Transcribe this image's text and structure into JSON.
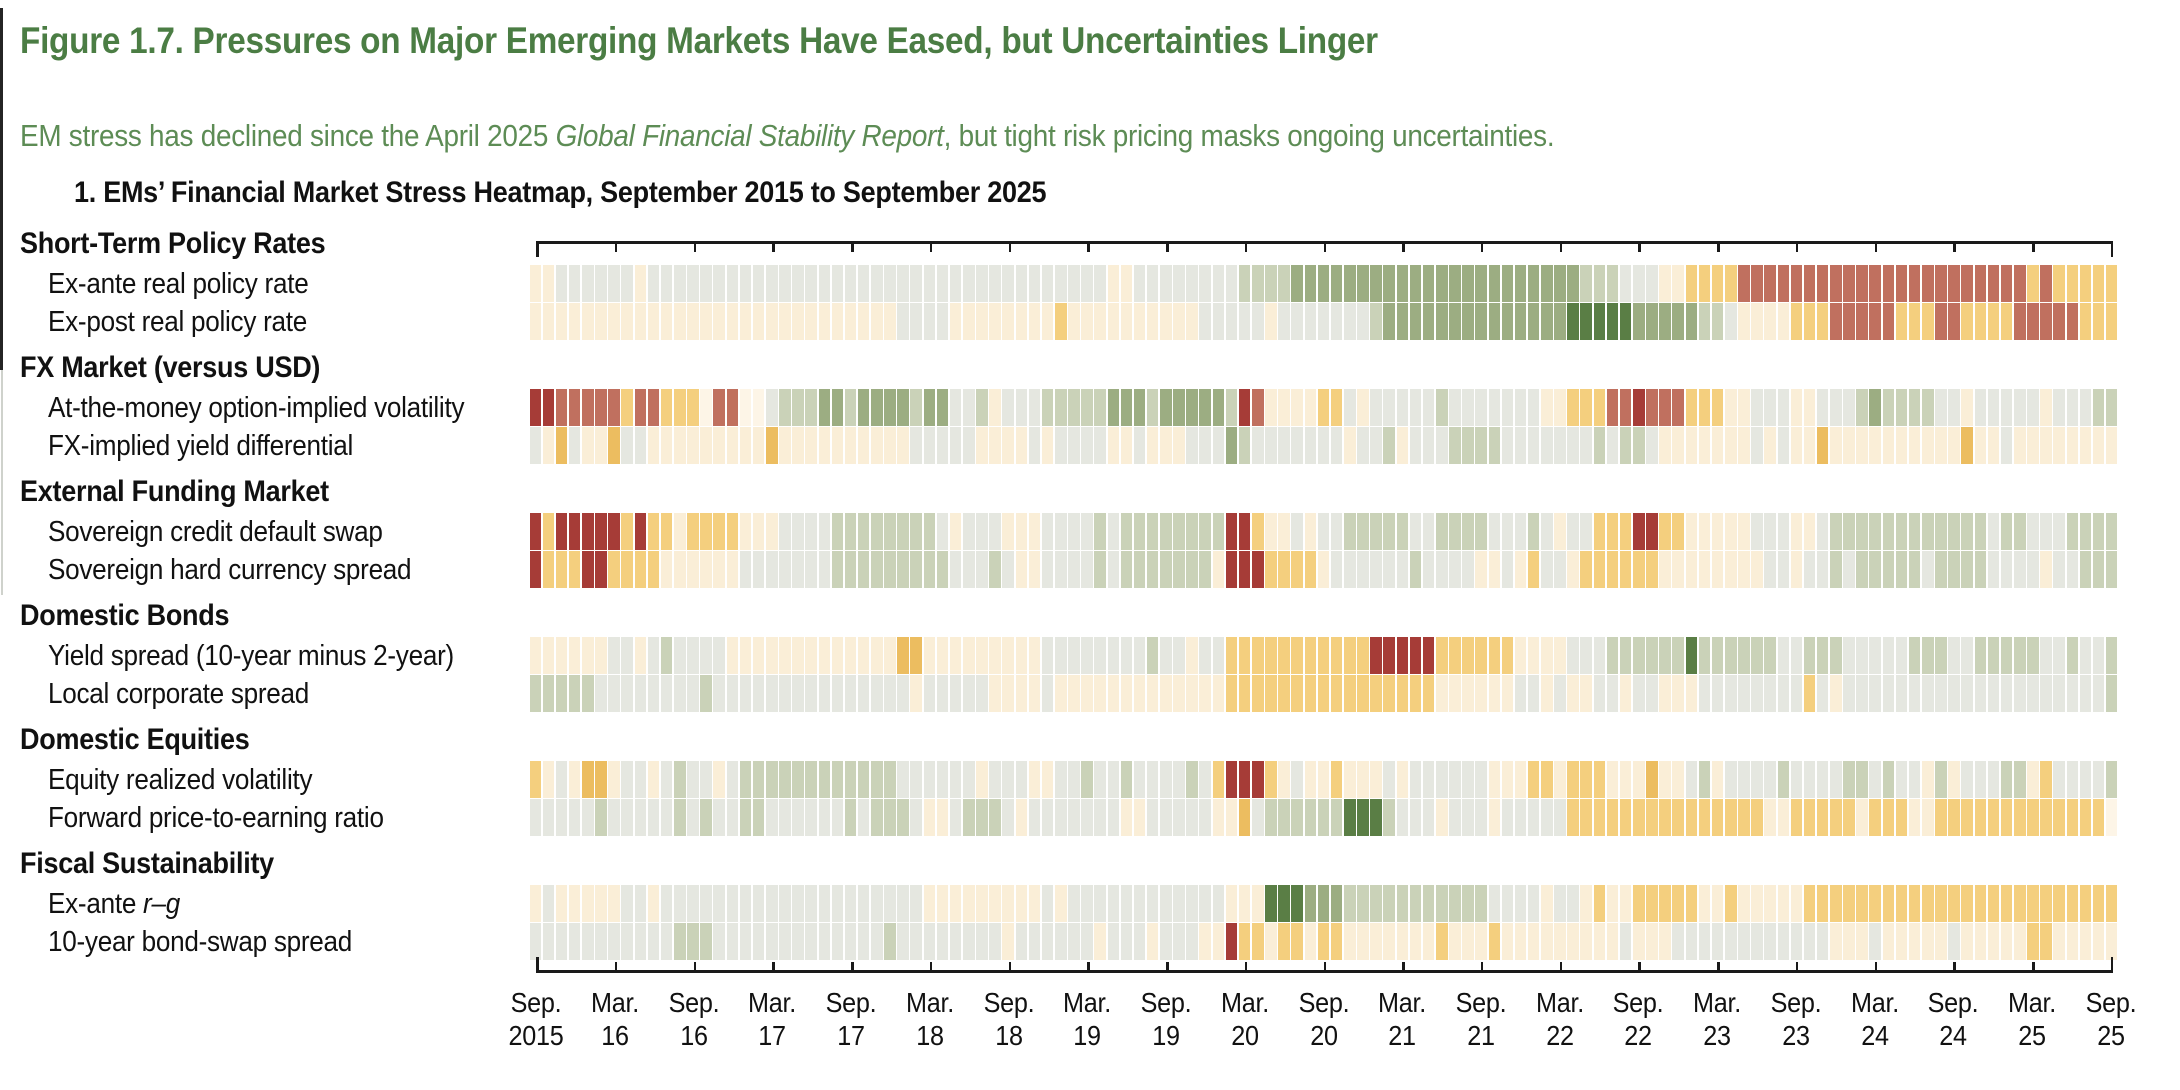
{
  "figure": {
    "title": "Figure 1.7. Pressures on Major Emerging Markets Have Eased, but Uncertainties Linger",
    "subtitle_prefix": "EM stress has declined since the April 2025 ",
    "subtitle_italic": "Global Financial Stability Report",
    "subtitle_suffix": ", but tight risk pricing masks ongoing uncertainties.",
    "title_color": "#4b7d44",
    "subtitle_color": "#5d8c55"
  },
  "chart_data": {
    "type": "heatmap",
    "title": "1. EMs’ Financial Market Stress Heatmap, September 2015 to September 2025",
    "time_axis": {
      "unit": "month",
      "n_cols": 121,
      "start": "Sep. 2015",
      "end": "Sep. 25",
      "tick_every_months": 6,
      "tick_labels": [
        [
          "Sep.",
          "2015"
        ],
        [
          "Mar.",
          "16"
        ],
        [
          "Sep.",
          "16"
        ],
        [
          "Mar.",
          "17"
        ],
        [
          "Sep.",
          "17"
        ],
        [
          "Mar.",
          "18"
        ],
        [
          "Sep.",
          "18"
        ],
        [
          "Mar.",
          "19"
        ],
        [
          "Sep.",
          "19"
        ],
        [
          "Mar.",
          "20"
        ],
        [
          "Sep.",
          "20"
        ],
        [
          "Mar.",
          "21"
        ],
        [
          "Sep.",
          "21"
        ],
        [
          "Mar.",
          "22"
        ],
        [
          "Sep.",
          "22"
        ],
        [
          "Mar.",
          "23"
        ],
        [
          "Sep.",
          "23"
        ],
        [
          "Mar.",
          "24"
        ],
        [
          "Sep.",
          "24"
        ],
        [
          "Mar.",
          "25"
        ],
        [
          "Sep.",
          "25"
        ]
      ]
    },
    "palette": {
      "G": "#5a7e45",
      "g": "#9cad82",
      "s": "#cad2b8",
      "n": "#e5e7e0",
      "w": "#fdf5e7",
      "c": "#faeed7",
      "o": "#f4cf7e",
      "O": "#ecbd60",
      "r": "#c0705f",
      "R": "#a63c37"
    },
    "groups": [
      {
        "label": "Short-Term Policy Rates",
        "rows": [
          {
            "label": "Ex-ante real policy rate",
            "cells_rle": "c2 n6 c1 n35 c2 n8 s4 g22 s3 n3 c2 o4 r22 o1 r1 o5"
          },
          {
            "label": "Ex-post real policy rate",
            "cells_rle": "c28 n4 c8 o1 c10 n5 c1 n7 s1 g14 G5 g5 s2 n1 c4 o3 r5 o3 r2 o4 r5 o3"
          }
        ]
      },
      {
        "label": "FX Market (versus USD)",
        "rows": [
          {
            "label": "At-the-money option-implied volatility",
            "cells_rle": "R2 r5 o1 r2 o3 w1 r2 w2 n1 s3 g2 s1 g4 s1 g2 n2 s1 c1 n3 s5 g3 s1 g5 s1 R1 r1 c4 o2 n1 c1 n5 s1 n7 c2 o3 r2 R1 r3 o3 c2 n3 c2 n3 s1 g1 s4 n2 c1 n5 c1 n3 s2"
          },
          {
            "label": "FX-implied yield differential",
            "cells_rle": "n1 c1 O1 n1 c2 O1 n2 c9 O1 c10 n5 c4 n1 c1 n4 c2 n1 c3 n3 g1 s1 n7 c1 n2 s1 c1 n3 s4 n7 s1 n1 s2 n1 c7 n1 c1 n1 c2 O1 c10 O1 c2 n1 c8"
          }
        ]
      },
      {
        "label": "External Funding Market",
        "rows": [
          {
            "label": "Sovereign credit default swap",
            "cells_rle": "R1 o1 R5 o1 R1 o2 c1 o4 c3 n4 s8 n1 c1 n3 c3 n4 s1 n1 s8 R2 o1 c2 n1 c1 n2 s5 n2 s4 n3 s1 n1 c1 n2 o3 R2 o2 c5 n3 c2 n1 s12 n1 s2 n3 s4"
          },
          {
            "label": "Sovereign hard currency spread",
            "cells_rle": "R1 o3 R2 o4 c6 n7 s9 n3 s1 n1 c2 n4 s1 n1 s7 c1 R3 o4 c1 n6 s1 n4 c2 n1 c1 o1 n2 c1 o6 c8 n2 c1 n2 s1 n1 s5 n1 s4 n4 c1 n2 s3"
          }
        ]
      },
      {
        "label": "Domestic Bonds",
        "rows": [
          {
            "label": "Yield spread (10-year minus 2-year)",
            "cells_rle": "c6 n2 c1 n1 s1 n4 c13 O2 c9 n8 s1 n2 c1 n2 o11 R5 o6 c4 n3 s6 G1 s6 n2 s3 n5 s3 n2 s5 n2 s1 n2 s1"
          },
          {
            "label": "Local corporate spread",
            "cells_rle": "s5 n8 s1 n15 c1 n5 c4 n1 c13 o16 c6 n2 c1 n1 c2 n2 c1 n2 c3 n8 o1 n1 c1 n20 s1"
          }
        ]
      },
      {
        "label": "Domestic Equities",
        "rows": [
          {
            "label": "Equity realized volatility",
            "cells_rle": "o1 c1 n1 c1 O2 c1 n2 c1 n1 s1 n2 c1 n1 s12 n6 c1 n3 c2 n2 s1 n2 s1 n4 s1 n1 o1 R3 o1 c1 n1 c2 o1 c3 n1 c1 n6 c3 o2 c1 o3 c3 O1 c2 n1 s1 c1 n4 s1 n4 s2 n1 s1 n2 c1 s1 c1 n3 s2 c1 o1 n4 s1"
          },
          {
            "label": "Forward price-to-earning ratio",
            "cells_rle": "n5 s1 n5 s1 n1 s1 n2 s2 n6 s1 n1 s3 n1 c2 n1 s3 n1 c1 n7 c2 n5 c2 O1 n1 s6 G3 s1 n3 c1 n3 c1 n5 o15 c2 o5 c1 o3 c2 o13 w1"
          }
        ]
      },
      {
        "label": "Fiscal Sustainability",
        "rows": [
          {
            "label_prefix": "Ex-ante ",
            "label_italic": "r–g",
            "cells_rle": "c1 n1 c5 n2 c1 n20 c9 n1 c1 n12 c3 G3 g3 s11 n4 c1 n2 c1 o1 c2 o5 c2 o1 c5 o24"
          },
          {
            "label": "10-year bond-swap spread",
            "cells_rle": "n11 s3 n13 s1 n8 c1 n6 c1 n3 c1 n3 c2 R1 o2 c1 o2 c1 o2 c7 o1 c3 o1 c9 n1 c3 n12 c3 n1 c5 n1 c5 o2 c5"
          }
        ]
      }
    ]
  }
}
